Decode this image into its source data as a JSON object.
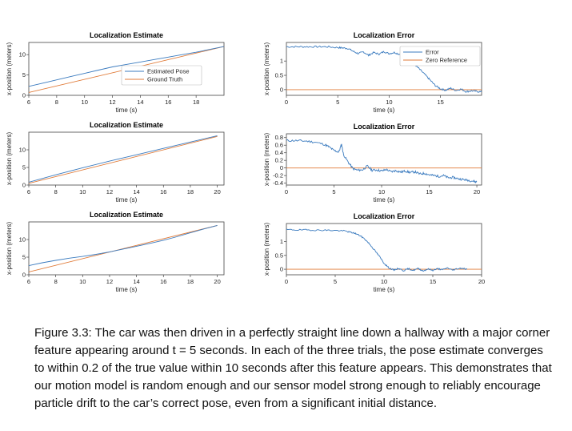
{
  "caption": "Figure 3.3: The car was then driven in a perfectly straight line down a hallway with a major corner feature appearing around t = 5 seconds. In each of the three trials, the pose estimate converges to within 0.2 of the true value within 10 seconds after this feature appears. This demonstrates that our motion model is random enough and our sensor model strong enough to reliably encourage particle drift to the car’s correct pose, even from a significant initial distance.",
  "colors": {
    "blue": "#3b7bbf",
    "orange": "#e07b39"
  },
  "chart_data": [
    {
      "id": "est1",
      "type": "line",
      "title": "Localization Estimate",
      "xlabel": "time (s)",
      "ylabel": "x-position (meters)",
      "xlim": [
        6,
        20
      ],
      "ylim": [
        0,
        13
      ],
      "xticks": [
        6,
        8,
        10,
        12,
        14,
        16,
        18
      ],
      "yticks": [
        0,
        5,
        10
      ],
      "legend": {
        "position": "right-middle",
        "entries": [
          "Estimated Pose",
          "Ground Truth"
        ]
      },
      "series": [
        {
          "name": "Estimated Pose",
          "color": "blue",
          "x": [
            6,
            7,
            8,
            9,
            10,
            11,
            12,
            13,
            14,
            15,
            16,
            17,
            18,
            19,
            20
          ],
          "y": [
            2.2,
            3.0,
            3.8,
            4.6,
            5.4,
            6.2,
            7.0,
            7.6,
            8.2,
            8.8,
            9.4,
            10.0,
            10.6,
            11.3,
            12.0
          ]
        },
        {
          "name": "Ground Truth",
          "color": "orange",
          "x": [
            6,
            20
          ],
          "y": [
            0.7,
            12.0
          ]
        }
      ]
    },
    {
      "id": "err1",
      "type": "line",
      "title": "Localization Error",
      "xlabel": "time (s)",
      "ylabel": "x-position (meters)",
      "xlim": [
        0,
        19
      ],
      "ylim": [
        -0.2,
        1.65
      ],
      "xticks": [
        0,
        5,
        10,
        15
      ],
      "yticks": [
        0,
        0.5,
        1
      ],
      "legend": {
        "position": "top-right",
        "entries": [
          "Error",
          "Zero Reference"
        ]
      },
      "series": [
        {
          "name": "Error",
          "color": "blue",
          "x": [
            0,
            1,
            2,
            3,
            4,
            5,
            5.5,
            6,
            6.5,
            7,
            7.5,
            8,
            8.5,
            9,
            9.5,
            10,
            10.5,
            11,
            11.5,
            12,
            12.5,
            13,
            13.5,
            14,
            14.5,
            15,
            15.5,
            16,
            16.5,
            17,
            17.5,
            18,
            18.5,
            19
          ],
          "y": [
            1.5,
            1.5,
            1.5,
            1.5,
            1.5,
            1.47,
            1.46,
            1.44,
            1.34,
            1.26,
            1.32,
            1.2,
            1.3,
            1.24,
            1.33,
            1.26,
            1.3,
            1.24,
            1.18,
            1.05,
            0.88,
            0.7,
            0.52,
            0.33,
            0.14,
            0.03,
            -0.02,
            0.05,
            -0.03,
            0.02,
            -0.07,
            -0.04,
            -0.06,
            -0.08
          ],
          "noise": 0.03,
          "seed": 7
        },
        {
          "name": "Zero Reference",
          "color": "orange",
          "x": [
            0,
            19
          ],
          "y": [
            0,
            0
          ]
        }
      ]
    },
    {
      "id": "est2",
      "type": "line",
      "title": "Localization Estimate",
      "xlabel": "time (s)",
      "ylabel": "x-position (meters)",
      "xlim": [
        6,
        20.5
      ],
      "ylim": [
        0,
        15
      ],
      "xticks": [
        6,
        8,
        10,
        12,
        14,
        16,
        18,
        20
      ],
      "yticks": [
        0,
        5,
        10
      ],
      "series": [
        {
          "name": "Estimated Pose",
          "color": "blue",
          "x": [
            6,
            8,
            10,
            12,
            14,
            16,
            18,
            20
          ],
          "y": [
            0.8,
            2.9,
            4.9,
            6.8,
            8.6,
            10.4,
            12.2,
            14.0
          ]
        },
        {
          "name": "Ground Truth",
          "color": "orange",
          "x": [
            6,
            20
          ],
          "y": [
            0.5,
            13.8
          ]
        }
      ]
    },
    {
      "id": "err2",
      "type": "line",
      "title": "Localization Error",
      "xlabel": "time (s)",
      "ylabel": "x-position (meters)",
      "xlim": [
        0,
        20.5
      ],
      "ylim": [
        -0.45,
        0.9
      ],
      "xticks": [
        0,
        5,
        10,
        15,
        20
      ],
      "yticks": [
        -0.4,
        -0.2,
        0,
        0.2,
        0.4,
        0.6,
        0.8
      ],
      "series": [
        {
          "name": "Error",
          "color": "blue",
          "x": [
            0,
            1,
            2,
            3,
            4,
            4.5,
            5,
            5.5,
            5.8,
            6,
            6.5,
            7,
            7.5,
            8,
            8.5,
            9,
            9.5,
            10,
            10.5,
            11,
            11.5,
            12,
            12.5,
            13,
            13.5,
            14,
            14.5,
            15,
            15.5,
            16,
            16.5,
            17,
            17.5,
            18,
            18.5,
            19,
            19.5,
            20
          ],
          "y": [
            0.72,
            0.72,
            0.71,
            0.68,
            0.62,
            0.55,
            0.46,
            0.42,
            0.62,
            0.35,
            0.15,
            -0.02,
            -0.06,
            -0.05,
            0.05,
            -0.06,
            -0.05,
            -0.08,
            -0.04,
            -0.1,
            -0.07,
            -0.11,
            -0.08,
            -0.12,
            -0.1,
            -0.16,
            -0.14,
            -0.18,
            -0.2,
            -0.22,
            -0.2,
            -0.26,
            -0.25,
            -0.28,
            -0.3,
            -0.32,
            -0.34,
            -0.37
          ],
          "noise": 0.03,
          "seed": 11
        },
        {
          "name": "Zero Reference",
          "color": "orange",
          "x": [
            0,
            20.5
          ],
          "y": [
            0,
            0
          ]
        }
      ]
    },
    {
      "id": "est3",
      "type": "line",
      "title": "Localization Estimate",
      "xlabel": "time (s)",
      "ylabel": "x-position (meters)",
      "xlim": [
        6,
        20.5
      ],
      "ylim": [
        0,
        15
      ],
      "xticks": [
        6,
        8,
        10,
        12,
        14,
        16,
        18,
        20
      ],
      "yticks": [
        0,
        5,
        10
      ],
      "series": [
        {
          "name": "Estimated Pose",
          "color": "blue",
          "x": [
            6,
            7,
            8,
            9,
            10,
            11,
            12,
            13,
            14,
            15,
            16,
            17,
            18,
            19,
            20
          ],
          "y": [
            2.6,
            3.4,
            4.1,
            4.7,
            5.2,
            5.8,
            6.5,
            7.3,
            8.1,
            8.9,
            9.8,
            10.8,
            11.9,
            13.0,
            14.0
          ]
        },
        {
          "name": "Ground Truth",
          "color": "orange",
          "x": [
            6,
            20
          ],
          "y": [
            0.8,
            14.0
          ]
        }
      ]
    },
    {
      "id": "err3",
      "type": "line",
      "title": "Localization Error",
      "xlabel": "time (s)",
      "ylabel": "x-position (meters)",
      "xlim": [
        0,
        20
      ],
      "ylim": [
        -0.2,
        1.65
      ],
      "xticks": [
        0,
        5,
        10,
        15,
        20
      ],
      "yticks": [
        0,
        0.5,
        1
      ],
      "series": [
        {
          "name": "Error",
          "color": "blue",
          "x": [
            0,
            1,
            2,
            3,
            4,
            5,
            6,
            6.5,
            7,
            7.5,
            8,
            8.5,
            9,
            9.5,
            10,
            10.5,
            11,
            11.5,
            12,
            12.5,
            13,
            13.5,
            14,
            14.5,
            15,
            15.5,
            16,
            16.5,
            17,
            17.5,
            18,
            18.5
          ],
          "y": [
            1.43,
            1.42,
            1.42,
            1.41,
            1.41,
            1.4,
            1.38,
            1.34,
            1.3,
            1.22,
            1.1,
            0.92,
            0.7,
            0.48,
            0.22,
            0.05,
            -0.03,
            0.03,
            -0.05,
            0.02,
            -0.04,
            0.03,
            -0.06,
            0.01,
            -0.04,
            0.02,
            -0.02,
            0.05,
            -0.03,
            0.02,
            0.04,
            0.0
          ],
          "noise": 0.025,
          "seed": 19
        },
        {
          "name": "Zero Reference",
          "color": "orange",
          "x": [
            0,
            20
          ],
          "y": [
            0,
            0
          ]
        }
      ]
    }
  ]
}
